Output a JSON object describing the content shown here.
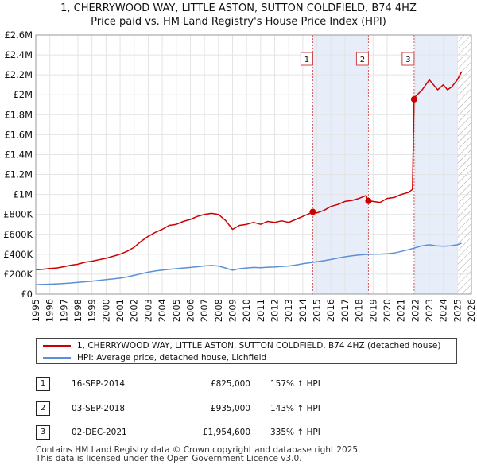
{
  "chart_data": {
    "type": "line",
    "title": "1, CHERRYWOOD WAY, LITTLE ASTON, SUTTON COLDFIELD, B74 4HZ",
    "subtitle": "Price paid vs. HM Land Registry's House Price Index (HPI)",
    "xlim": [
      1995,
      2026
    ],
    "ylim": [
      0,
      2600000
    ],
    "x_ticks": [
      "1995",
      "1996",
      "1997",
      "1998",
      "1999",
      "2000",
      "2001",
      "2002",
      "2003",
      "2004",
      "2005",
      "2006",
      "2007",
      "2008",
      "2009",
      "2010",
      "2011",
      "2012",
      "2013",
      "2014",
      "2015",
      "2016",
      "2017",
      "2018",
      "2019",
      "2020",
      "2021",
      "2022",
      "2023",
      "2024",
      "2025",
      "2026"
    ],
    "y_ticks": [
      {
        "value": 0,
        "label": "£0"
      },
      {
        "value": 200000,
        "label": "£200K"
      },
      {
        "value": 400000,
        "label": "£400K"
      },
      {
        "value": 600000,
        "label": "£600K"
      },
      {
        "value": 800000,
        "label": "£800K"
      },
      {
        "value": 1000000,
        "label": "£1M"
      },
      {
        "value": 1200000,
        "label": "£1.2M"
      },
      {
        "value": 1400000,
        "label": "£1.4M"
      },
      {
        "value": 1600000,
        "label": "£1.6M"
      },
      {
        "value": 1800000,
        "label": "£1.8M"
      },
      {
        "value": 2000000,
        "label": "£2M"
      },
      {
        "value": 2200000,
        "label": "£2.2M"
      },
      {
        "value": 2400000,
        "label": "£2.4M"
      },
      {
        "value": 2600000,
        "label": "£2.6M"
      }
    ],
    "series": [
      {
        "name": "1, CHERRYWOOD WAY, LITTLE ASTON, SUTTON COLDFIELD, B74 4HZ (detached house)",
        "color": "#cc0000",
        "x": [
          1995.0,
          1995.5,
          1996.0,
          1996.5,
          1997.0,
          1997.5,
          1998.0,
          1998.5,
          1999.0,
          1999.5,
          2000.0,
          2000.5,
          2001.0,
          2001.5,
          2002.0,
          2002.5,
          2003.0,
          2003.5,
          2004.0,
          2004.5,
          2005.0,
          2005.5,
          2006.0,
          2006.5,
          2007.0,
          2007.5,
          2008.0,
          2008.5,
          2009.0,
          2009.5,
          2010.0,
          2010.5,
          2011.0,
          2011.5,
          2012.0,
          2012.5,
          2013.0,
          2013.5,
          2014.0,
          2014.5,
          2014.71,
          2015.0,
          2015.5,
          2016.0,
          2016.5,
          2017.0,
          2017.5,
          2018.0,
          2018.5,
          2018.67,
          2019.0,
          2019.5,
          2020.0,
          2020.5,
          2021.0,
          2021.5,
          2021.8,
          2021.92,
          2022.0,
          2022.5,
          2023.0,
          2023.3,
          2023.6,
          2024.0,
          2024.3,
          2024.6,
          2025.0,
          2025.3
        ],
        "values": [
          245000,
          250000,
          258000,
          262000,
          275000,
          290000,
          300000,
          320000,
          330000,
          345000,
          360000,
          380000,
          400000,
          430000,
          470000,
          530000,
          580000,
          620000,
          650000,
          690000,
          700000,
          730000,
          750000,
          780000,
          800000,
          810000,
          800000,
          740000,
          650000,
          690000,
          700000,
          720000,
          700000,
          730000,
          720000,
          735000,
          720000,
          750000,
          780000,
          810000,
          825000,
          815000,
          840000,
          880000,
          900000,
          930000,
          940000,
          960000,
          990000,
          935000,
          930000,
          920000,
          960000,
          970000,
          1000000,
          1020000,
          1050000,
          1954600,
          1980000,
          2050000,
          2150000,
          2100000,
          2050000,
          2100000,
          2050000,
          2080000,
          2150000,
          2230000
        ]
      },
      {
        "name": "HPI: Average price, detached house, Lichfield",
        "color": "#5b8fd6",
        "x": [
          1995.0,
          1995.5,
          1996.0,
          1996.5,
          1997.0,
          1997.5,
          1998.0,
          1998.5,
          1999.0,
          1999.5,
          2000.0,
          2000.5,
          2001.0,
          2001.5,
          2002.0,
          2002.5,
          2003.0,
          2003.5,
          2004.0,
          2004.5,
          2005.0,
          2005.5,
          2006.0,
          2006.5,
          2007.0,
          2007.5,
          2008.0,
          2008.5,
          2009.0,
          2009.5,
          2010.0,
          2010.5,
          2011.0,
          2011.5,
          2012.0,
          2012.5,
          2013.0,
          2013.5,
          2014.0,
          2014.5,
          2015.0,
          2015.5,
          2016.0,
          2016.5,
          2017.0,
          2017.5,
          2018.0,
          2018.5,
          2019.0,
          2019.5,
          2020.0,
          2020.5,
          2021.0,
          2021.5,
          2022.0,
          2022.5,
          2023.0,
          2023.5,
          2024.0,
          2024.5,
          2025.0,
          2025.3
        ],
        "values": [
          95000,
          97000,
          100000,
          103000,
          107000,
          112000,
          118000,
          124000,
          130000,
          137000,
          145000,
          152000,
          160000,
          172000,
          188000,
          205000,
          220000,
          232000,
          242000,
          250000,
          255000,
          262000,
          268000,
          275000,
          283000,
          288000,
          282000,
          262000,
          240000,
          255000,
          262000,
          268000,
          265000,
          270000,
          272000,
          278000,
          282000,
          292000,
          305000,
          315000,
          325000,
          335000,
          348000,
          362000,
          375000,
          385000,
          392000,
          398000,
          400000,
          402000,
          405000,
          412000,
          428000,
          445000,
          465000,
          485000,
          495000,
          485000,
          480000,
          485000,
          495000,
          510000
        ]
      }
    ],
    "transactions": [
      {
        "num": "1",
        "date": "16-SEP-2014",
        "x": 2014.71,
        "price": "£825,000",
        "value": 825000,
        "hpi": "157% ↑ HPI"
      },
      {
        "num": "2",
        "date": "03-SEP-2018",
        "x": 2018.67,
        "price": "£935,000",
        "value": 935000,
        "hpi": "143% ↑ HPI"
      },
      {
        "num": "3",
        "date": "02-DEC-2021",
        "x": 2021.92,
        "price": "£1,954,600",
        "value": 1954600,
        "hpi": "335% ↑ HPI"
      }
    ],
    "hatch_from": 2025.0,
    "legend": {
      "property": "1, CHERRYWOOD WAY, LITTLE ASTON, SUTTON COLDFIELD, B74 4HZ (detached house)",
      "hpi": "HPI: Average price, detached house, Lichfield"
    },
    "colors": {
      "property": "#cc0000",
      "hpi": "#5b8fd6",
      "shade": "#e8eef9",
      "vline": "#cc3333"
    }
  },
  "footer": {
    "line1": "Contains HM Land Registry data © Crown copyright and database right 2025.",
    "line2": "This data is licensed under the Open Government Licence v3.0."
  }
}
